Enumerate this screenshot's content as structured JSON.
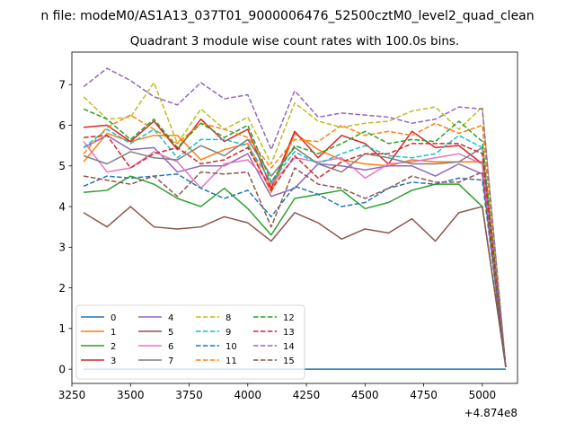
{
  "suptitle": "n file: modeM0/AS1A13_037T01_9000006476_52500cztM0_level2_quad_clean",
  "chart_data": {
    "type": "line",
    "title": "Quadrant 3 module wise count rates with 100.0s bins.",
    "xlabel": "",
    "ylabel": "",
    "offset_text": "+4.874e8",
    "xlim": [
      3250,
      5150
    ],
    "ylim": [
      -0.35,
      7.8
    ],
    "x_ticks": [
      3250,
      3500,
      3750,
      4000,
      4250,
      4500,
      4750,
      5000
    ],
    "y_ticks": [
      0,
      1,
      2,
      3,
      4,
      5,
      6,
      7
    ],
    "grid": false,
    "legend": {
      "placement": "lower-left",
      "columns": 4
    },
    "x": [
      3300,
      3400,
      3500,
      3600,
      3700,
      3800,
      3900,
      4000,
      4100,
      4200,
      4300,
      4400,
      4500,
      4600,
      4700,
      4800,
      4900,
      5000,
      5100
    ],
    "series": [
      {
        "name": "0",
        "color": "#1f77b4",
        "style": "solid",
        "values": [
          0,
          0,
          0,
          0,
          0,
          0,
          0,
          0,
          0,
          0,
          0,
          0,
          0,
          0,
          0,
          0,
          0,
          0,
          0
        ]
      },
      {
        "name": "1",
        "color": "#ff7f0e",
        "style": "solid",
        "values": [
          5.1,
          5.8,
          5.6,
          5.75,
          5.75,
          5.15,
          5.4,
          5.55,
          4.35,
          5.8,
          5.4,
          5.15,
          5.05,
          5.0,
          5.15,
          5.1,
          5.1,
          5.1,
          0.05
        ]
      },
      {
        "name": "2",
        "color": "#2ca02c",
        "style": "solid",
        "values": [
          4.35,
          4.4,
          4.75,
          4.55,
          4.2,
          4.0,
          4.45,
          3.95,
          3.3,
          4.2,
          4.3,
          4.4,
          3.95,
          4.1,
          4.4,
          4.55,
          4.55,
          4.0,
          0.05
        ]
      },
      {
        "name": "3",
        "color": "#d62728",
        "style": "solid",
        "values": [
          5.95,
          6.0,
          5.6,
          6.1,
          5.4,
          6.15,
          5.6,
          5.9,
          4.45,
          5.85,
          5.2,
          5.75,
          5.55,
          5.05,
          5.85,
          5.45,
          5.5,
          5.05,
          0.05
        ]
      },
      {
        "name": "4",
        "color": "#9467bd",
        "style": "solid",
        "values": [
          5.45,
          5.75,
          5.4,
          5.45,
          4.85,
          5.0,
          5.0,
          5.3,
          4.25,
          4.45,
          5.05,
          5.0,
          4.9,
          5.0,
          5.0,
          4.75,
          5.05,
          4.8,
          0.05
        ]
      },
      {
        "name": "5",
        "color": "#8c564b",
        "style": "solid",
        "values": [
          3.85,
          3.5,
          4.0,
          3.5,
          3.45,
          3.5,
          3.75,
          3.6,
          3.15,
          3.85,
          3.6,
          3.2,
          3.45,
          3.35,
          3.7,
          3.15,
          3.85,
          4.0,
          0.05
        ]
      },
      {
        "name": "6",
        "color": "#e377c2",
        "style": "solid",
        "values": [
          5.6,
          4.85,
          4.95,
          5.35,
          5.1,
          4.45,
          5.05,
          5.15,
          4.55,
          5.2,
          5.1,
          5.2,
          4.7,
          5.05,
          5.1,
          5.2,
          5.3,
          5.05,
          0.05
        ]
      },
      {
        "name": "7",
        "color": "#7f7f7f",
        "style": "solid",
        "values": [
          5.25,
          5.05,
          5.35,
          5.2,
          5.15,
          5.5,
          5.25,
          5.65,
          4.75,
          5.45,
          5.05,
          4.85,
          5.3,
          5.2,
          5.05,
          5.05,
          5.1,
          5.45,
          0.05
        ]
      },
      {
        "name": "8",
        "color": "#bcbd22",
        "style": "dashed",
        "values": [
          6.7,
          6.15,
          6.2,
          7.05,
          5.55,
          6.4,
          5.9,
          6.2,
          5.05,
          6.55,
          6.1,
          5.95,
          6.05,
          6.1,
          6.35,
          6.45,
          5.9,
          6.45,
          0.05
        ]
      },
      {
        "name": "9",
        "color": "#17becf",
        "style": "dashed",
        "values": [
          5.45,
          5.9,
          5.55,
          5.9,
          5.2,
          5.65,
          5.65,
          5.5,
          4.6,
          5.35,
          5.05,
          5.3,
          5.5,
          5.25,
          5.2,
          5.3,
          5.75,
          5.45,
          0.05
        ]
      },
      {
        "name": "10",
        "color": "#1f77b4",
        "style": "dashed",
        "values": [
          4.5,
          4.75,
          4.7,
          4.75,
          4.8,
          4.45,
          4.2,
          4.4,
          3.75,
          4.5,
          4.3,
          4.0,
          4.1,
          4.45,
          4.6,
          4.55,
          4.7,
          4.65,
          0.05
        ]
      },
      {
        "name": "11",
        "color": "#ff7f0e",
        "style": "dashed",
        "values": [
          5.3,
          5.95,
          6.25,
          5.9,
          5.55,
          6.05,
          5.9,
          5.7,
          4.95,
          5.65,
          5.6,
          6.0,
          5.75,
          5.85,
          5.75,
          6.05,
          5.8,
          6.0,
          0.05
        ]
      },
      {
        "name": "12",
        "color": "#2ca02c",
        "style": "dashed",
        "values": [
          6.4,
          6.15,
          5.65,
          6.15,
          5.45,
          6.05,
          5.7,
          6.0,
          4.6,
          5.5,
          5.3,
          5.55,
          5.85,
          5.55,
          5.65,
          5.6,
          6.1,
          5.6,
          0.05
        ]
      },
      {
        "name": "13",
        "color": "#d62728",
        "style": "dashed",
        "values": [
          5.7,
          5.75,
          4.95,
          5.3,
          5.45,
          5.05,
          5.15,
          5.45,
          4.4,
          5.25,
          4.7,
          5.1,
          5.3,
          5.3,
          5.55,
          5.55,
          5.55,
          5.3,
          0.05
        ]
      },
      {
        "name": "14",
        "color": "#9467bd",
        "style": "dashed",
        "values": [
          6.95,
          7.4,
          7.1,
          6.7,
          6.5,
          7.05,
          6.65,
          6.75,
          5.4,
          6.85,
          6.2,
          6.3,
          6.25,
          6.2,
          6.05,
          6.15,
          6.45,
          6.4,
          0.05
        ]
      },
      {
        "name": "15",
        "color": "#8c564b",
        "style": "dashed",
        "values": [
          4.75,
          4.65,
          4.55,
          4.75,
          4.25,
          4.85,
          4.8,
          4.85,
          3.5,
          4.95,
          4.55,
          4.45,
          4.2,
          4.45,
          4.75,
          4.6,
          4.6,
          4.85,
          0.05
        ]
      }
    ]
  }
}
